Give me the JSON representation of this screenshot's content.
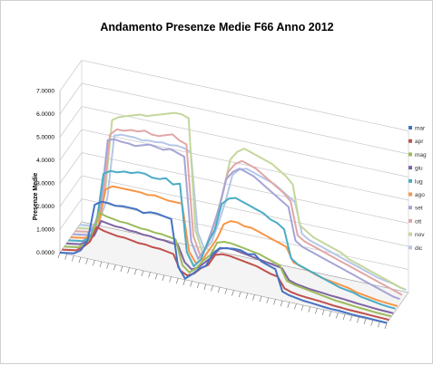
{
  "chart_data": {
    "type": "line",
    "title": "Andamento Presenze Medie  F66 Anno 2012",
    "ylabel": "Presenze Medie",
    "xlabel": "",
    "ylim": [
      0,
      7
    ],
    "y_ticks": [
      "0.0000",
      "1.0000",
      "2.0000",
      "3.0000",
      "4.0000",
      "5.0000",
      "6.0000",
      "7.0000"
    ],
    "grid": true,
    "legend_position": "right",
    "x_count": 48,
    "series": [
      {
        "name": "mar",
        "color": "#4472C4",
        "values": [
          0,
          0.05,
          0.1,
          0.3,
          0.8,
          2.4,
          2.6,
          2.6,
          2.55,
          2.6,
          2.6,
          2.6,
          2.5,
          2.6,
          2.6,
          2.55,
          2.5,
          0.5,
          0.05,
          0.3,
          0.6,
          0.8,
          1.4,
          1.7,
          1.75,
          1.8,
          1.8,
          1.7,
          1.75,
          1.5,
          1.4,
          1.3,
          0.4,
          0.3,
          0.25,
          0.2,
          0.18,
          0.15,
          0.12,
          0.1,
          0.1,
          0.08,
          0.06,
          0.05,
          0.05,
          0.04,
          0.03,
          0.02
        ]
      },
      {
        "name": "apr",
        "color": "#C0504D",
        "values": [
          0,
          0.05,
          0.1,
          0.3,
          0.6,
          1.3,
          1.2,
          1.15,
          1.1,
          1.1,
          1.05,
          1.0,
          1.0,
          0.95,
          0.95,
          0.9,
          0.85,
          0.2,
          0.05,
          0.2,
          0.5,
          0.7,
          1.2,
          1.3,
          1.3,
          1.25,
          1.2,
          1.15,
          1.1,
          1.0,
          0.9,
          0.85,
          0.4,
          0.3,
          0.25,
          0.22,
          0.2,
          0.18,
          0.15,
          0.12,
          0.1,
          0.08,
          0.07,
          0.06,
          0.05,
          0.04,
          0.03,
          0.02
        ]
      },
      {
        "name": "mag",
        "color": "#9BBB59",
        "values": [
          0,
          0.05,
          0.1,
          0.3,
          0.7,
          1.8,
          1.7,
          1.65,
          1.6,
          1.6,
          1.55,
          1.5,
          1.5,
          1.45,
          1.45,
          1.4,
          1.35,
          0.3,
          0.05,
          0.3,
          0.7,
          1.0,
          1.6,
          1.7,
          1.7,
          1.65,
          1.6,
          1.55,
          1.5,
          1.4,
          1.3,
          1.2,
          0.6,
          0.5,
          0.45,
          0.4,
          0.35,
          0.3,
          0.25,
          0.2,
          0.18,
          0.15,
          0.12,
          0.1,
          0.08,
          0.06,
          0.05,
          0.04
        ]
      },
      {
        "name": "giu",
        "color": "#8064A2",
        "values": [
          0,
          0.05,
          0.1,
          0.3,
          0.6,
          1.3,
          1.25,
          1.2,
          1.2,
          1.15,
          1.15,
          1.1,
          1.1,
          1.05,
          1.05,
          1.0,
          1.0,
          0.3,
          0.05,
          0.2,
          0.5,
          0.8,
          1.2,
          1.3,
          1.3,
          1.25,
          1.2,
          1.15,
          1.1,
          1.05,
          1.0,
          0.95,
          0.5,
          0.4,
          0.35,
          0.3,
          0.28,
          0.25,
          0.22,
          0.2,
          0.18,
          0.15,
          0.12,
          0.1,
          0.08,
          0.06,
          0.05,
          0.04
        ]
      },
      {
        "name": "lug",
        "color": "#4BACC6",
        "values": [
          0,
          0.05,
          0.1,
          0.3,
          1.0,
          3.2,
          3.4,
          3.4,
          3.5,
          3.5,
          3.6,
          3.6,
          3.5,
          3.5,
          3.6,
          3.4,
          3.5,
          0.6,
          0.05,
          0.4,
          1.2,
          1.8,
          3.0,
          3.3,
          3.4,
          3.3,
          3.2,
          3.1,
          3.0,
          2.8,
          2.7,
          2.5,
          1.3,
          1.1,
          1.0,
          0.9,
          0.8,
          0.7,
          0.6,
          0.5,
          0.45,
          0.4,
          0.3,
          0.25,
          0.2,
          0.15,
          0.12,
          0.1
        ]
      },
      {
        "name": "ago",
        "color": "#F79646",
        "values": [
          0,
          0.05,
          0.1,
          0.3,
          0.8,
          2.4,
          2.6,
          2.6,
          2.6,
          2.6,
          2.6,
          2.55,
          2.6,
          2.55,
          2.5,
          2.5,
          2.5,
          0.5,
          0.05,
          0.3,
          0.8,
          1.3,
          2.0,
          2.2,
          2.2,
          2.1,
          2.1,
          2.0,
          1.9,
          1.8,
          1.7,
          1.6,
          1.0,
          0.9,
          0.8,
          0.7,
          0.6,
          0.55,
          0.5,
          0.45,
          0.4,
          0.3,
          0.25,
          0.2,
          0.15,
          0.12,
          0.1,
          0.08
        ]
      },
      {
        "name": "set",
        "color": "#A5A5D6",
        "values": [
          0,
          0.05,
          0.1,
          0.5,
          1.5,
          4.4,
          4.5,
          4.45,
          4.45,
          4.4,
          4.5,
          4.6,
          4.55,
          4.5,
          4.6,
          4.5,
          4.4,
          0.8,
          0.1,
          0.6,
          1.5,
          2.5,
          3.8,
          4.2,
          4.4,
          4.3,
          4.2,
          4.0,
          3.8,
          3.6,
          3.4,
          3.2,
          1.8,
          1.6,
          1.5,
          1.4,
          1.3,
          1.2,
          1.1,
          1.0,
          0.9,
          0.8,
          0.7,
          0.6,
          0.5,
          0.4,
          0.3,
          0.25
        ]
      },
      {
        "name": "ott",
        "color": "#E1A7A7",
        "values": [
          0,
          0.05,
          0.1,
          0.5,
          1.5,
          4.5,
          4.8,
          4.8,
          4.9,
          4.9,
          5.0,
          4.9,
          4.9,
          5.0,
          5.1,
          4.9,
          4.8,
          0.9,
          0.1,
          0.6,
          1.6,
          2.7,
          4.0,
          4.4,
          4.6,
          4.5,
          4.4,
          4.2,
          4.0,
          3.8,
          3.6,
          3.3,
          1.9,
          1.7,
          1.6,
          1.5,
          1.4,
          1.3,
          1.2,
          1.1,
          1.0,
          0.9,
          0.8,
          0.7,
          0.6,
          0.5,
          0.4,
          0.3
        ]
      },
      {
        "name": "nov",
        "color": "#C4D79B",
        "values": [
          0,
          0.05,
          0.1,
          0.6,
          1.8,
          5.0,
          5.2,
          5.3,
          5.4,
          5.5,
          5.5,
          5.6,
          5.7,
          5.8,
          5.9,
          5.9,
          5.8,
          1.0,
          0.1,
          0.7,
          1.8,
          3.0,
          4.4,
          4.8,
          5.0,
          4.9,
          4.8,
          4.7,
          4.6,
          4.4,
          4.2,
          3.9,
          2.2,
          2.0,
          1.8,
          1.7,
          1.6,
          1.5,
          1.4,
          1.2,
          1.1,
          1.0,
          0.9,
          0.8,
          0.7,
          0.6,
          0.5,
          0.4
        ]
      },
      {
        "name": "dic",
        "color": "#B4C7E7",
        "values": [
          0,
          0.05,
          0.1,
          0.5,
          1.4,
          4.2,
          4.3,
          4.3,
          4.3,
          4.25,
          4.3,
          4.3,
          4.35,
          4.3,
          4.35,
          4.3,
          4.2,
          0.8,
          0.1,
          0.5,
          1.4,
          2.4,
          3.6,
          3.9,
          4.0,
          3.9,
          3.8,
          3.7,
          3.6,
          3.4,
          3.2,
          3.0,
          1.7,
          1.5,
          1.4,
          1.3,
          1.2,
          1.1,
          1.0,
          0.9,
          0.8,
          0.7,
          0.6,
          0.5,
          0.45,
          0.4,
          0.3,
          0.25
        ]
      }
    ]
  }
}
